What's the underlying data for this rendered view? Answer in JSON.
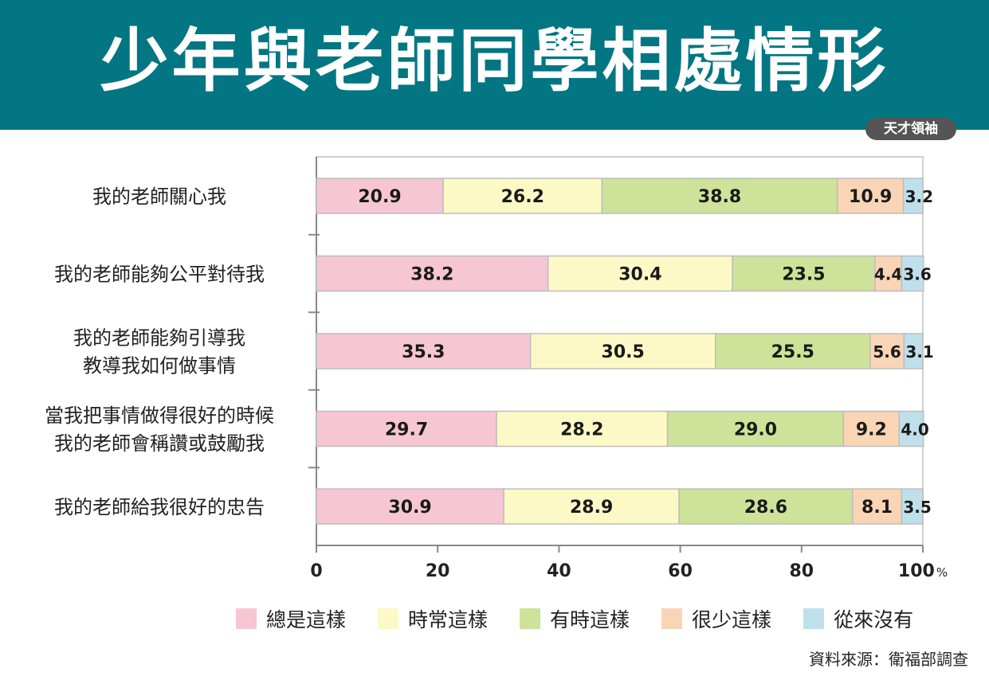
{
  "header": {
    "title": "少年與老師同學相處情形",
    "brand": "天才領袖"
  },
  "source": "資料來源：衛福部調查",
  "colors": {
    "header_bg": "#027682",
    "series": [
      "#F6C6D5",
      "#FDF9C6",
      "#CFE29A",
      "#F9D5B6",
      "#BFE0EB"
    ]
  },
  "chart_data": {
    "type": "bar",
    "orientation": "horizontal",
    "stacked": true,
    "categories": [
      [
        "我的老師關心我"
      ],
      [
        "我的老師能夠公平對待我"
      ],
      [
        "我的老師能夠引導我",
        "教導我如何做事情"
      ],
      [
        "當我把事情做得很好的時候",
        "我的老師會稱讚或鼓勵我"
      ],
      [
        "我的老師給我很好的忠告"
      ]
    ],
    "series": [
      {
        "name": "總是這樣",
        "values": [
          20.9,
          38.2,
          35.3,
          29.7,
          30.9
        ]
      },
      {
        "name": "時常這樣",
        "values": [
          26.2,
          30.4,
          30.5,
          28.2,
          28.9
        ]
      },
      {
        "name": "有時這樣",
        "values": [
          38.8,
          23.5,
          25.5,
          29.0,
          28.6
        ]
      },
      {
        "name": "很少這樣",
        "values": [
          10.9,
          4.4,
          5.6,
          9.2,
          8.1
        ]
      },
      {
        "name": "從來沒有",
        "values": [
          3.2,
          3.6,
          3.1,
          4.0,
          3.5
        ]
      }
    ],
    "xlim": [
      0,
      100
    ],
    "xticks": [
      "0",
      "20",
      "40",
      "60",
      "80",
      "100"
    ],
    "x_unit": "%",
    "legend_position": "bottom"
  }
}
